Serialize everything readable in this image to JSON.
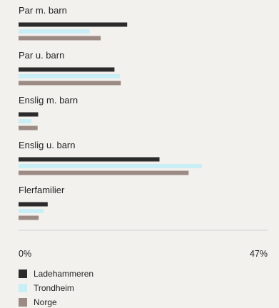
{
  "chart_data": {
    "type": "bar",
    "orientation": "horizontal",
    "categories": [
      "Par m. barn",
      "Par u. barn",
      "Enslig m. barn",
      "Enslig u. barn",
      "Flerfamilier"
    ],
    "series": [
      {
        "name": "Ladehammeren",
        "color": "#2b2b2b",
        "values": [
          20.5,
          18.1,
          3.7,
          26.6,
          5.5
        ]
      },
      {
        "name": "Trondheim",
        "color": "#c9eef5",
        "values": [
          13.4,
          19.1,
          2.4,
          34.6,
          4.7
        ]
      },
      {
        "name": "Norge",
        "color": "#9c8b84",
        "values": [
          15.5,
          19.3,
          3.6,
          32.1,
          3.8
        ]
      }
    ],
    "xlim": [
      0,
      47
    ],
    "xtick_labels": [
      "0%",
      "47%"
    ],
    "axis_line_color": "#cfcfcf",
    "legend_position": "bottom-left"
  }
}
